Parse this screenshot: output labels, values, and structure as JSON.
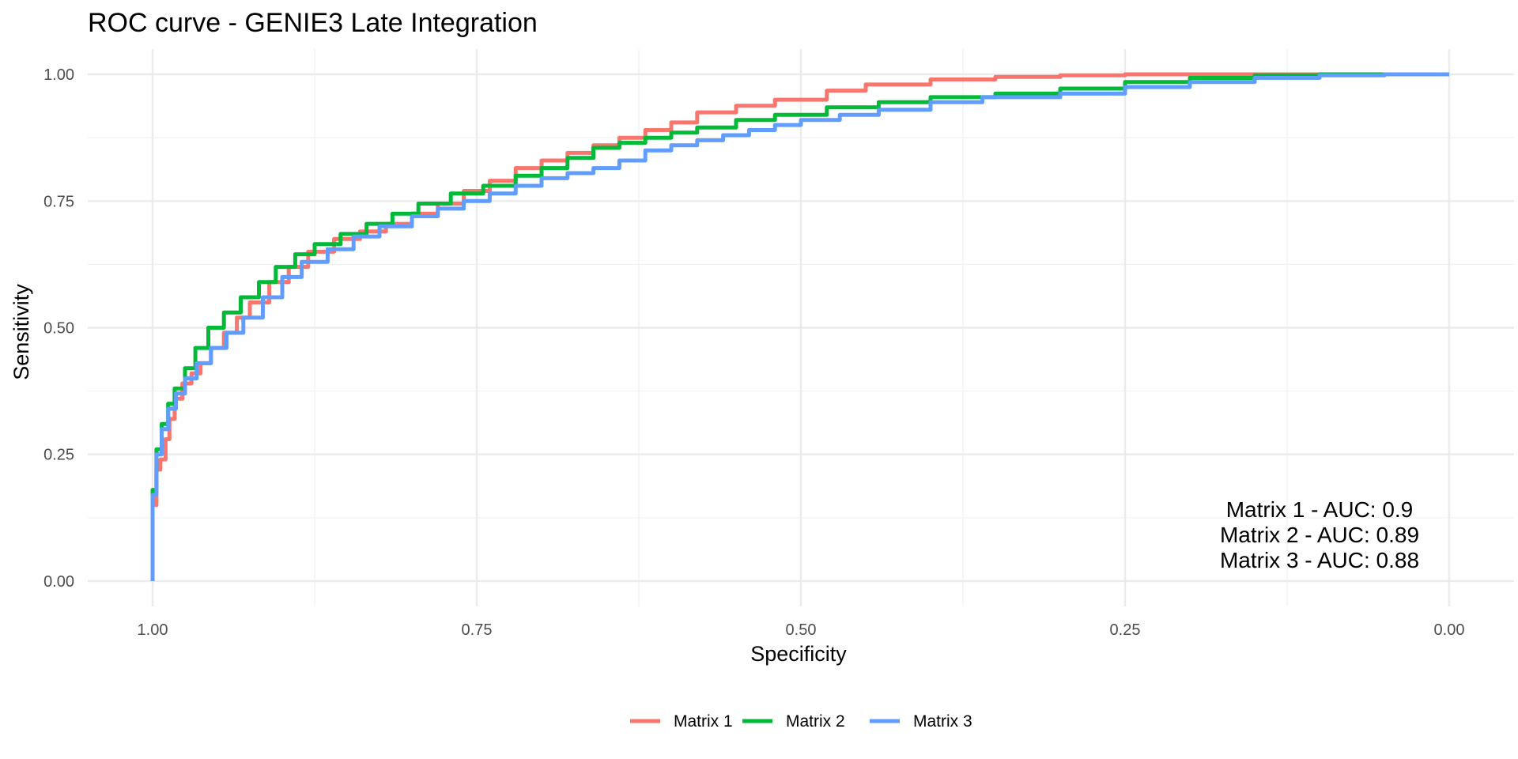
{
  "chart_data": {
    "type": "line",
    "title": "ROC curve - GENIE3 Late Integration",
    "xlabel": "Specificity",
    "ylabel": "Sensitivity",
    "x_reversed": true,
    "xlim": [
      1.05,
      -0.05
    ],
    "ylim": [
      -0.05,
      1.05
    ],
    "x_ticks": [
      1.0,
      0.75,
      0.5,
      0.25,
      0.0
    ],
    "x_tick_labels": [
      "1.00",
      "0.75",
      "0.50",
      "0.25",
      "0.00"
    ],
    "y_ticks": [
      0.0,
      0.25,
      0.5,
      0.75,
      1.0
    ],
    "y_tick_labels": [
      "0.00",
      "0.25",
      "0.50",
      "0.75",
      "1.00"
    ],
    "grid": true,
    "legend_position": "bottom",
    "series": [
      {
        "name": "Matrix 1",
        "color": "#F8766D",
        "points": [
          [
            1.0,
            0.0
          ],
          [
            1.0,
            0.15
          ],
          [
            0.997,
            0.22
          ],
          [
            0.994,
            0.24
          ],
          [
            0.99,
            0.28
          ],
          [
            0.987,
            0.32
          ],
          [
            0.983,
            0.36
          ],
          [
            0.977,
            0.39
          ],
          [
            0.97,
            0.41
          ],
          [
            0.963,
            0.43
          ],
          [
            0.955,
            0.46
          ],
          [
            0.945,
            0.49
          ],
          [
            0.935,
            0.52
          ],
          [
            0.925,
            0.55
          ],
          [
            0.91,
            0.59
          ],
          [
            0.895,
            0.62
          ],
          [
            0.88,
            0.65
          ],
          [
            0.86,
            0.675
          ],
          [
            0.84,
            0.69
          ],
          [
            0.82,
            0.705
          ],
          [
            0.8,
            0.725
          ],
          [
            0.78,
            0.745
          ],
          [
            0.76,
            0.77
          ],
          [
            0.74,
            0.79
          ],
          [
            0.72,
            0.815
          ],
          [
            0.7,
            0.83
          ],
          [
            0.68,
            0.845
          ],
          [
            0.66,
            0.86
          ],
          [
            0.64,
            0.875
          ],
          [
            0.62,
            0.89
          ],
          [
            0.6,
            0.905
          ],
          [
            0.58,
            0.925
          ],
          [
            0.55,
            0.938
          ],
          [
            0.52,
            0.95
          ],
          [
            0.48,
            0.968
          ],
          [
            0.45,
            0.98
          ],
          [
            0.4,
            0.99
          ],
          [
            0.35,
            0.995
          ],
          [
            0.3,
            0.998
          ],
          [
            0.25,
            1.0
          ],
          [
            0.18,
            1.0
          ],
          [
            0.1,
            1.0
          ],
          [
            0.0,
            1.0
          ]
        ]
      },
      {
        "name": "Matrix 2",
        "color": "#00BA38",
        "points": [
          [
            1.0,
            0.0
          ],
          [
            1.0,
            0.18
          ],
          [
            0.997,
            0.26
          ],
          [
            0.993,
            0.31
          ],
          [
            0.988,
            0.35
          ],
          [
            0.983,
            0.38
          ],
          [
            0.975,
            0.42
          ],
          [
            0.967,
            0.46
          ],
          [
            0.957,
            0.5
          ],
          [
            0.945,
            0.53
          ],
          [
            0.932,
            0.56
          ],
          [
            0.918,
            0.59
          ],
          [
            0.905,
            0.62
          ],
          [
            0.89,
            0.645
          ],
          [
            0.875,
            0.665
          ],
          [
            0.855,
            0.685
          ],
          [
            0.835,
            0.705
          ],
          [
            0.815,
            0.725
          ],
          [
            0.795,
            0.745
          ],
          [
            0.77,
            0.765
          ],
          [
            0.745,
            0.78
          ],
          [
            0.72,
            0.8
          ],
          [
            0.7,
            0.815
          ],
          [
            0.68,
            0.835
          ],
          [
            0.66,
            0.855
          ],
          [
            0.64,
            0.865
          ],
          [
            0.62,
            0.875
          ],
          [
            0.6,
            0.885
          ],
          [
            0.58,
            0.895
          ],
          [
            0.55,
            0.91
          ],
          [
            0.52,
            0.92
          ],
          [
            0.48,
            0.935
          ],
          [
            0.44,
            0.945
          ],
          [
            0.4,
            0.955
          ],
          [
            0.35,
            0.962
          ],
          [
            0.3,
            0.972
          ],
          [
            0.25,
            0.985
          ],
          [
            0.2,
            0.993
          ],
          [
            0.15,
            0.998
          ],
          [
            0.1,
            1.0
          ],
          [
            0.0,
            1.0
          ]
        ]
      },
      {
        "name": "Matrix 3",
        "color": "#619CFF",
        "points": [
          [
            1.0,
            0.0
          ],
          [
            1.0,
            0.17
          ],
          [
            0.997,
            0.25
          ],
          [
            0.993,
            0.3
          ],
          [
            0.988,
            0.34
          ],
          [
            0.982,
            0.37
          ],
          [
            0.975,
            0.4
          ],
          [
            0.966,
            0.43
          ],
          [
            0.955,
            0.46
          ],
          [
            0.943,
            0.49
          ],
          [
            0.93,
            0.52
          ],
          [
            0.915,
            0.56
          ],
          [
            0.9,
            0.6
          ],
          [
            0.885,
            0.63
          ],
          [
            0.865,
            0.655
          ],
          [
            0.845,
            0.68
          ],
          [
            0.825,
            0.7
          ],
          [
            0.8,
            0.72
          ],
          [
            0.78,
            0.735
          ],
          [
            0.76,
            0.75
          ],
          [
            0.74,
            0.765
          ],
          [
            0.72,
            0.78
          ],
          [
            0.7,
            0.795
          ],
          [
            0.68,
            0.805
          ],
          [
            0.66,
            0.815
          ],
          [
            0.64,
            0.83
          ],
          [
            0.62,
            0.85
          ],
          [
            0.6,
            0.86
          ],
          [
            0.58,
            0.87
          ],
          [
            0.56,
            0.88
          ],
          [
            0.54,
            0.89
          ],
          [
            0.52,
            0.9
          ],
          [
            0.5,
            0.91
          ],
          [
            0.47,
            0.92
          ],
          [
            0.44,
            0.93
          ],
          [
            0.4,
            0.945
          ],
          [
            0.36,
            0.955
          ],
          [
            0.3,
            0.962
          ],
          [
            0.25,
            0.975
          ],
          [
            0.2,
            0.985
          ],
          [
            0.15,
            0.993
          ],
          [
            0.1,
            0.998
          ],
          [
            0.05,
            1.0
          ],
          [
            0.0,
            1.0
          ]
        ]
      }
    ],
    "annotations": [
      "Matrix 1 - AUC: 0.9",
      "Matrix 2 - AUC: 0.89",
      "Matrix 3 - AUC: 0.88"
    ]
  }
}
